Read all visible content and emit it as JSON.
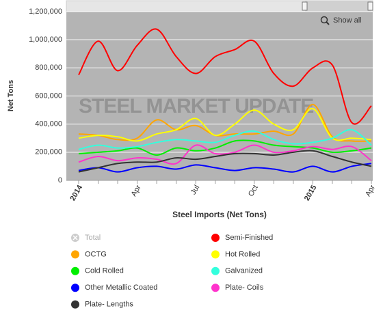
{
  "chart_data": {
    "type": "line",
    "title": null,
    "x_label": "Steel Imports (Net Tons)",
    "y_label": "Net Tons",
    "watermark": "STEEL MARKET UPDATE",
    "button": "Show all",
    "categories": [
      "2014",
      null,
      null,
      "Apr",
      null,
      null,
      "Jul",
      null,
      null,
      "Oct",
      null,
      null,
      "2015",
      null,
      null,
      "Apr"
    ],
    "ylim": [
      0,
      1200000
    ],
    "yticks": [
      0,
      {
        "value": 200000,
        "label": "200,000"
      },
      {
        "value": 400000,
        "label": "400,000"
      },
      {
        "value": 600000,
        "label": "600,000"
      },
      {
        "value": 800000,
        "label": "800,000"
      },
      {
        "value": 1000000,
        "label": "1,000,000"
      },
      {
        "value": 1200000,
        "label": "1,200,000"
      }
    ],
    "grid": true,
    "series": [
      {
        "name": "Total",
        "color": "#cccccc",
        "visible": false,
        "values": [
          null,
          null,
          null,
          null,
          null,
          null,
          null,
          null,
          null,
          null,
          null,
          null,
          null,
          null,
          null,
          null
        ]
      },
      {
        "name": "Semi-Finished",
        "color": "#ff0000",
        "values": [
          750000,
          990000,
          780000,
          960000,
          1075000,
          880000,
          760000,
          880000,
          930000,
          990000,
          760000,
          670000,
          800000,
          820000,
          410000,
          530000
        ]
      },
      {
        "name": "OCTG",
        "color": "#ffa500",
        "values": [
          330000,
          320000,
          290000,
          300000,
          430000,
          360000,
          390000,
          320000,
          330000,
          330000,
          350000,
          330000,
          540000,
          310000,
          280000,
          280000
        ]
      },
      {
        "name": "Hot Rolled",
        "color": "#ffff00",
        "values": [
          300000,
          320000,
          310000,
          280000,
          330000,
          360000,
          440000,
          320000,
          400000,
          500000,
          400000,
          360000,
          510000,
          300000,
          300000,
          290000
        ]
      },
      {
        "name": "Cold Rolled",
        "color": "#00ee00",
        "values": [
          190000,
          200000,
          210000,
          230000,
          180000,
          230000,
          210000,
          230000,
          280000,
          280000,
          250000,
          240000,
          230000,
          200000,
          210000,
          230000
        ]
      },
      {
        "name": "Galvanized",
        "color": "#33ffdd",
        "values": [
          220000,
          250000,
          230000,
          240000,
          270000,
          290000,
          280000,
          270000,
          320000,
          350000,
          290000,
          260000,
          270000,
          300000,
          360000,
          250000
        ]
      },
      {
        "name": "Other Metallic Coated",
        "color": "#0000ff",
        "values": [
          70000,
          90000,
          60000,
          90000,
          100000,
          80000,
          110000,
          90000,
          70000,
          90000,
          80000,
          60000,
          100000,
          60000,
          100000,
          120000
        ]
      },
      {
        "name": "Plate- Coils",
        "color": "#ff33cc",
        "values": [
          130000,
          170000,
          140000,
          160000,
          150000,
          120000,
          250000,
          190000,
          200000,
          250000,
          200000,
          210000,
          240000,
          220000,
          240000,
          140000
        ]
      },
      {
        "name": "Plate- Lengths",
        "color": "#333333",
        "values": [
          60000,
          90000,
          120000,
          130000,
          130000,
          160000,
          150000,
          170000,
          190000,
          190000,
          180000,
          200000,
          210000,
          170000,
          130000,
          100000
        ]
      }
    ]
  }
}
